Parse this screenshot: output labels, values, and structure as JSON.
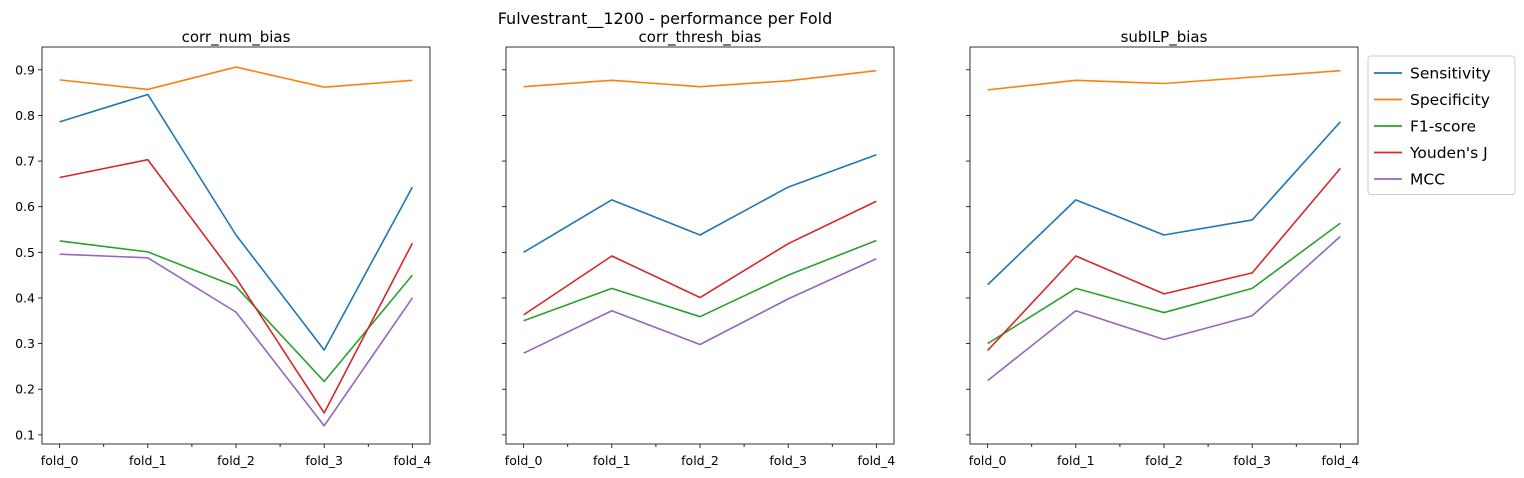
{
  "figure_title": "Fulvestrant__1200 - performance per Fold",
  "chart_data": [
    {
      "type": "line",
      "title": "corr_num_bias",
      "xlabel": "",
      "ylabel": "",
      "categories": [
        "fold_0",
        "fold_1",
        "fold_2",
        "fold_3",
        "fold_4"
      ],
      "ylim": [
        0.08,
        0.95
      ],
      "yticks": [
        0.1,
        0.2,
        0.3,
        0.4,
        0.5,
        0.6,
        0.7,
        0.8,
        0.9
      ],
      "grid": false,
      "series": [
        {
          "name": "Sensitivity",
          "values": [
            0.786,
            0.846,
            0.538,
            0.286,
            0.643
          ]
        },
        {
          "name": "Specificity",
          "values": [
            0.878,
            0.857,
            0.906,
            0.862,
            0.877
          ]
        },
        {
          "name": "F1-score",
          "values": [
            0.525,
            0.501,
            0.425,
            0.217,
            0.45
          ]
        },
        {
          "name": "Youden's J",
          "values": [
            0.664,
            0.703,
            0.444,
            0.148,
            0.52
          ]
        },
        {
          "name": "MCC",
          "values": [
            0.496,
            0.488,
            0.369,
            0.12,
            0.4
          ]
        }
      ]
    },
    {
      "type": "line",
      "title": "corr_thresh_bias",
      "xlabel": "",
      "ylabel": "",
      "categories": [
        "fold_0",
        "fold_1",
        "fold_2",
        "fold_3",
        "fold_4"
      ],
      "ylim": [
        0.08,
        0.95
      ],
      "yticks": [
        0.1,
        0.2,
        0.3,
        0.4,
        0.5,
        0.6,
        0.7,
        0.8,
        0.9
      ],
      "grid": false,
      "series": [
        {
          "name": "Sensitivity",
          "values": [
            0.5,
            0.615,
            0.538,
            0.643,
            0.714
          ]
        },
        {
          "name": "Specificity",
          "values": [
            0.863,
            0.877,
            0.863,
            0.876,
            0.898
          ]
        },
        {
          "name": "F1-score",
          "values": [
            0.35,
            0.421,
            0.359,
            0.45,
            0.526
          ]
        },
        {
          "name": "Youden's J",
          "values": [
            0.363,
            0.492,
            0.401,
            0.519,
            0.612
          ]
        },
        {
          "name": "MCC",
          "values": [
            0.279,
            0.372,
            0.298,
            0.398,
            0.486
          ]
        }
      ]
    },
    {
      "type": "line",
      "title": "subILP_bias",
      "xlabel": "",
      "ylabel": "",
      "categories": [
        "fold_0",
        "fold_1",
        "fold_2",
        "fold_3",
        "fold_4"
      ],
      "ylim": [
        0.08,
        0.95
      ],
      "yticks": [
        0.1,
        0.2,
        0.3,
        0.4,
        0.5,
        0.6,
        0.7,
        0.8,
        0.9
      ],
      "grid": false,
      "legend": "outside-top-right",
      "series": [
        {
          "name": "Sensitivity",
          "values": [
            0.429,
            0.615,
            0.538,
            0.571,
            0.786
          ]
        },
        {
          "name": "Specificity",
          "values": [
            0.856,
            0.877,
            0.87,
            0.884,
            0.898
          ]
        },
        {
          "name": "F1-score",
          "values": [
            0.3,
            0.421,
            0.368,
            0.421,
            0.564
          ]
        },
        {
          "name": "Youden's J",
          "values": [
            0.285,
            0.492,
            0.409,
            0.455,
            0.684
          ]
        },
        {
          "name": "MCC",
          "values": [
            0.219,
            0.372,
            0.309,
            0.361,
            0.535
          ]
        }
      ]
    }
  ],
  "legend": {
    "entries": [
      {
        "label": "Sensitivity",
        "color": "#1f77b4"
      },
      {
        "label": "Specificity",
        "color": "#ff7f0e"
      },
      {
        "label": "F1-score",
        "color": "#2ca02c"
      },
      {
        "label": "Youden's J",
        "color": "#d62728"
      },
      {
        "label": "MCC",
        "color": "#9467bd"
      }
    ]
  }
}
